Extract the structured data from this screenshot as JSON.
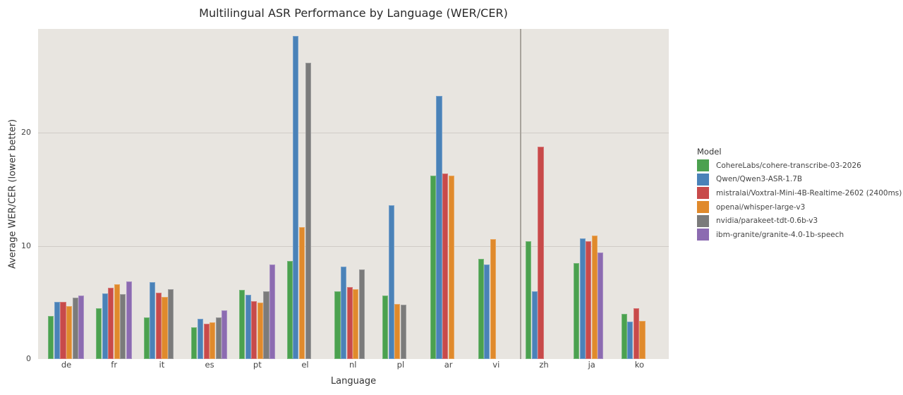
{
  "chart_data": {
    "type": "bar",
    "title": "Multilingual ASR Performance by Language (WER/CER)",
    "xlabel": "Language",
    "ylabel": "Average WER/CER (lower better)",
    "ylim": [
      0,
      29.2
    ],
    "yticks": [
      0,
      10,
      20
    ],
    "grid": true,
    "legend_position": "right",
    "legend_title": "Model",
    "separator_between": [
      "vi",
      "zh"
    ],
    "categories": [
      "de",
      "fr",
      "it",
      "es",
      "pt",
      "el",
      "nl",
      "pl",
      "ar",
      "vi",
      "zh",
      "ja",
      "ko"
    ],
    "series": [
      {
        "name": "CohereLabs/cohere-transcribe-03-2026",
        "color": "#4ba14f",
        "values": [
          3.8,
          4.5,
          3.7,
          2.8,
          6.1,
          8.7,
          6.0,
          5.6,
          16.25,
          8.85,
          10.45,
          8.5,
          4.0
        ]
      },
      {
        "name": "Qwen/Qwen3-ASR-1.7B",
        "color": "#4a82b8",
        "values": [
          5.05,
          5.8,
          6.8,
          3.55,
          5.7,
          28.6,
          8.15,
          13.6,
          23.25,
          8.35,
          6.0,
          10.7,
          3.3
        ]
      },
      {
        "name": "mistralai/Voxtral-Mini-4B-Realtime-2602 (2400ms)",
        "color": "#c84a4a",
        "values": [
          5.05,
          6.3,
          5.85,
          3.15,
          5.1,
          null,
          6.35,
          null,
          16.4,
          null,
          18.8,
          10.4,
          4.5
        ]
      },
      {
        "name": "openai/whisper-large-v3",
        "color": "#e08a2c",
        "values": [
          4.7,
          6.6,
          5.5,
          3.25,
          5.0,
          11.65,
          6.2,
          4.85,
          16.25,
          10.6,
          null,
          10.95,
          3.35
        ]
      },
      {
        "name": "nvidia/parakeet-tdt-0.6b-v3",
        "color": "#7b7b7b",
        "values": [
          5.4,
          5.75,
          6.15,
          3.7,
          6.0,
          26.2,
          7.9,
          4.8,
          null,
          null,
          null,
          null,
          null
        ]
      },
      {
        "name": "ibm-granite/granite-4.0-1b-speech",
        "color": "#8c6bb1",
        "values": [
          5.6,
          6.85,
          null,
          4.3,
          8.35,
          null,
          null,
          null,
          null,
          null,
          null,
          9.4,
          null
        ]
      }
    ]
  },
  "colors": {
    "plot_background": "#e8e5e0",
    "gridline": "#d0ccc6",
    "separator": "#a8a39c"
  }
}
